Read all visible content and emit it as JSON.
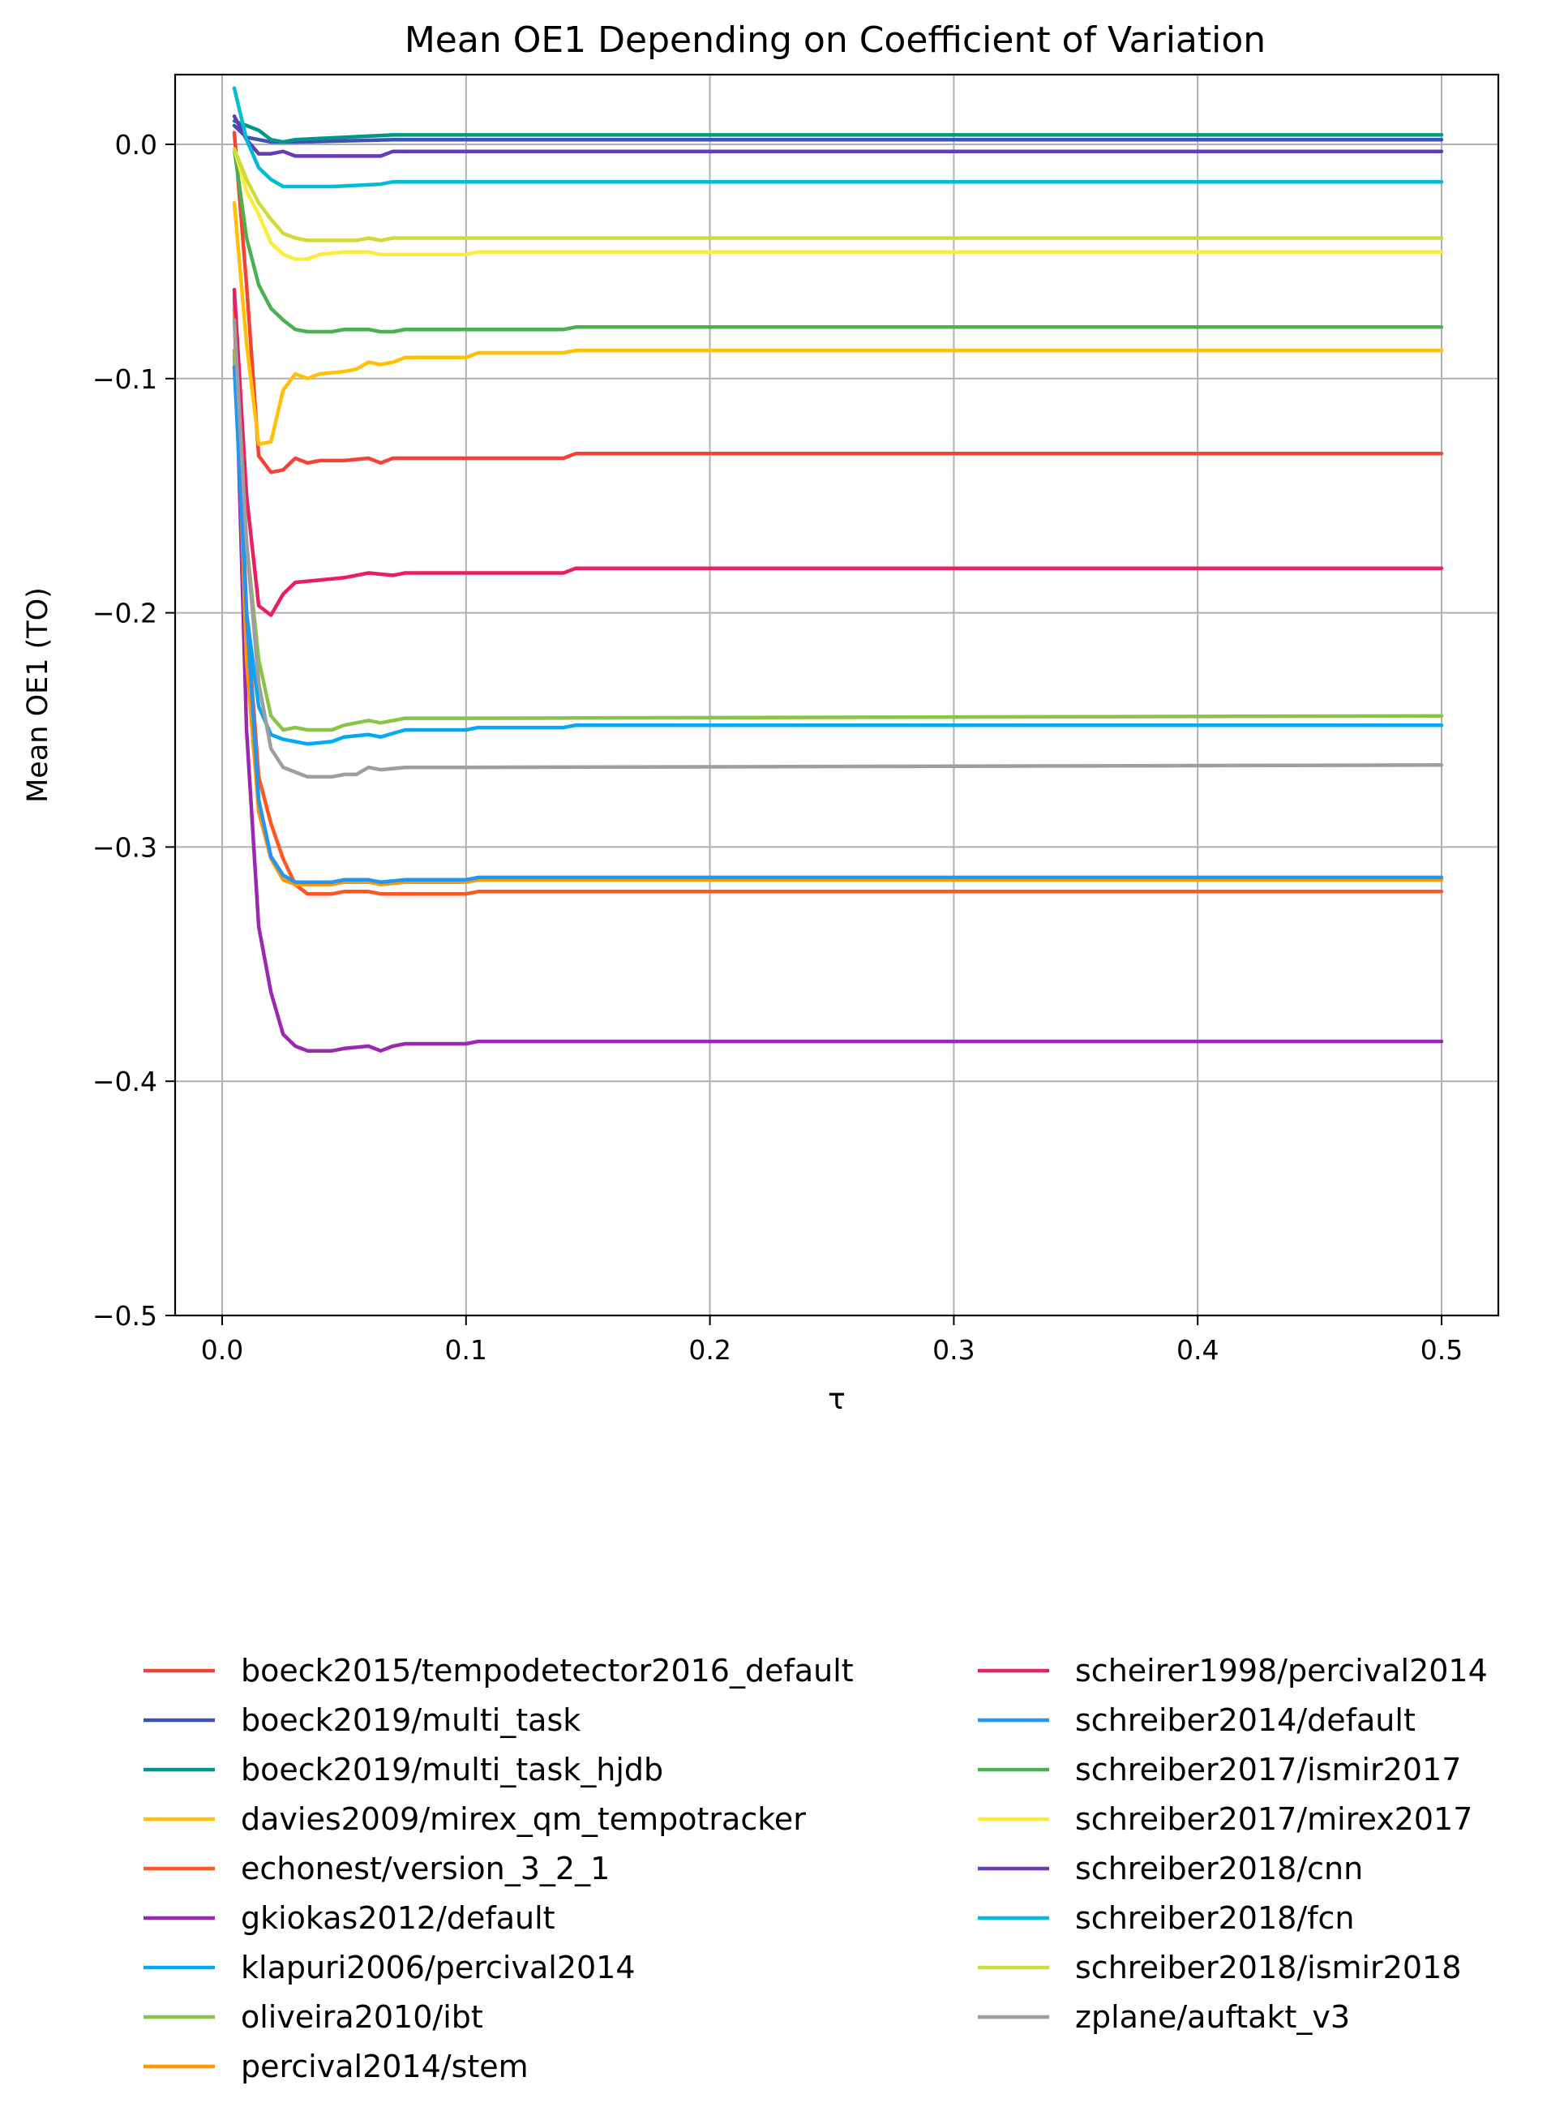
{
  "chart_data": {
    "type": "line",
    "title": "Mean OE1 Depending on Coefficient of Variation",
    "xlabel": "τ",
    "ylabel": "Mean OE1 (TO)",
    "xlim": [
      -0.02,
      0.525
    ],
    "ylim": [
      -0.5,
      0.03
    ],
    "xticks": [
      0.0,
      0.1,
      0.2,
      0.3,
      0.4,
      0.5
    ],
    "xtick_labels": [
      "0.0",
      "0.1",
      "0.2",
      "0.3",
      "0.4",
      "0.5"
    ],
    "yticks": [
      0.0,
      -0.1,
      -0.2,
      -0.3,
      -0.4,
      -0.5
    ],
    "ytick_labels": [
      "0.0",
      "−0.1",
      "−0.2",
      "−0.3",
      "−0.4",
      "−0.5"
    ],
    "grid": true,
    "legend_placement": "below plot, two columns",
    "series": [
      {
        "name": "boeck2015/tempodetector2016_default",
        "color": "#f44336",
        "points": [
          [
            0.005,
            0.005
          ],
          [
            0.01,
            -0.06
          ],
          [
            0.015,
            -0.133
          ],
          [
            0.02,
            -0.14
          ],
          [
            0.025,
            -0.139
          ],
          [
            0.03,
            -0.134
          ],
          [
            0.035,
            -0.136
          ],
          [
            0.04,
            -0.135
          ],
          [
            0.05,
            -0.135
          ],
          [
            0.06,
            -0.134
          ],
          [
            0.065,
            -0.136
          ],
          [
            0.07,
            -0.134
          ],
          [
            0.1,
            -0.134
          ],
          [
            0.14,
            -0.134
          ],
          [
            0.145,
            -0.132
          ],
          [
            0.5,
            -0.132
          ]
        ]
      },
      {
        "name": "boeck2019/multi_task",
        "color": "#3f51b5",
        "points": [
          [
            0.005,
            0.008
          ],
          [
            0.01,
            0.003
          ],
          [
            0.02,
            0.001
          ],
          [
            0.03,
            0.001
          ],
          [
            0.07,
            0.002
          ],
          [
            0.5,
            0.002
          ]
        ]
      },
      {
        "name": "boeck2019/multi_task_hjdb",
        "color": "#009688",
        "points": [
          [
            0.005,
            0.01
          ],
          [
            0.01,
            0.008
          ],
          [
            0.015,
            0.006
          ],
          [
            0.02,
            0.002
          ],
          [
            0.025,
            0.001
          ],
          [
            0.03,
            0.002
          ],
          [
            0.07,
            0.004
          ],
          [
            0.5,
            0.004
          ]
        ]
      },
      {
        "name": "davies2009/mirex_qm_tempotracker",
        "color": "#ffc107",
        "points": [
          [
            0.005,
            -0.025
          ],
          [
            0.01,
            -0.085
          ],
          [
            0.015,
            -0.128
          ],
          [
            0.02,
            -0.127
          ],
          [
            0.025,
            -0.105
          ],
          [
            0.03,
            -0.098
          ],
          [
            0.035,
            -0.1
          ],
          [
            0.04,
            -0.098
          ],
          [
            0.05,
            -0.097
          ],
          [
            0.055,
            -0.096
          ],
          [
            0.06,
            -0.093
          ],
          [
            0.065,
            -0.094
          ],
          [
            0.07,
            -0.093
          ],
          [
            0.075,
            -0.091
          ],
          [
            0.1,
            -0.091
          ],
          [
            0.105,
            -0.089
          ],
          [
            0.14,
            -0.089
          ],
          [
            0.145,
            -0.088
          ],
          [
            0.5,
            -0.088
          ]
        ]
      },
      {
        "name": "echonest/version_3_2_1",
        "color": "#ff5722",
        "points": [
          [
            0.005,
            -0.065
          ],
          [
            0.01,
            -0.2
          ],
          [
            0.015,
            -0.27
          ],
          [
            0.02,
            -0.29
          ],
          [
            0.025,
            -0.305
          ],
          [
            0.03,
            -0.316
          ],
          [
            0.035,
            -0.32
          ],
          [
            0.045,
            -0.32
          ],
          [
            0.05,
            -0.319
          ],
          [
            0.06,
            -0.319
          ],
          [
            0.065,
            -0.32
          ],
          [
            0.1,
            -0.32
          ],
          [
            0.105,
            -0.319
          ],
          [
            0.5,
            -0.319
          ]
        ]
      },
      {
        "name": "gkiokas2012/default",
        "color": "#9c27b0",
        "points": [
          [
            0.005,
            -0.07
          ],
          [
            0.01,
            -0.25
          ],
          [
            0.015,
            -0.334
          ],
          [
            0.02,
            -0.362
          ],
          [
            0.025,
            -0.38
          ],
          [
            0.03,
            -0.385
          ],
          [
            0.035,
            -0.387
          ],
          [
            0.045,
            -0.387
          ],
          [
            0.05,
            -0.386
          ],
          [
            0.06,
            -0.385
          ],
          [
            0.065,
            -0.387
          ],
          [
            0.07,
            -0.385
          ],
          [
            0.075,
            -0.384
          ],
          [
            0.1,
            -0.384
          ],
          [
            0.105,
            -0.383
          ],
          [
            0.5,
            -0.383
          ]
        ]
      },
      {
        "name": "klapuri2006/percival2014",
        "color": "#03a9f4",
        "points": [
          [
            0.005,
            -0.09
          ],
          [
            0.01,
            -0.2
          ],
          [
            0.015,
            -0.24
          ],
          [
            0.02,
            -0.252
          ],
          [
            0.025,
            -0.254
          ],
          [
            0.035,
            -0.256
          ],
          [
            0.045,
            -0.255
          ],
          [
            0.05,
            -0.253
          ],
          [
            0.06,
            -0.252
          ],
          [
            0.065,
            -0.253
          ],
          [
            0.075,
            -0.25
          ],
          [
            0.1,
            -0.25
          ],
          [
            0.105,
            -0.249
          ],
          [
            0.14,
            -0.249
          ],
          [
            0.145,
            -0.248
          ],
          [
            0.5,
            -0.248
          ]
        ]
      },
      {
        "name": "oliveira2010/ibt",
        "color": "#8bc34a",
        "points": [
          [
            0.005,
            -0.088
          ],
          [
            0.01,
            -0.17
          ],
          [
            0.015,
            -0.22
          ],
          [
            0.02,
            -0.244
          ],
          [
            0.025,
            -0.25
          ],
          [
            0.03,
            -0.249
          ],
          [
            0.035,
            -0.25
          ],
          [
            0.045,
            -0.25
          ],
          [
            0.05,
            -0.248
          ],
          [
            0.06,
            -0.246
          ],
          [
            0.065,
            -0.247
          ],
          [
            0.075,
            -0.245
          ],
          [
            0.1,
            -0.245
          ],
          [
            0.5,
            -0.244
          ]
        ]
      },
      {
        "name": "percival2014/stem",
        "color": "#ff9800",
        "points": [
          [
            0.005,
            -0.07
          ],
          [
            0.01,
            -0.22
          ],
          [
            0.015,
            -0.285
          ],
          [
            0.02,
            -0.305
          ],
          [
            0.025,
            -0.314
          ],
          [
            0.03,
            -0.316
          ],
          [
            0.045,
            -0.316
          ],
          [
            0.05,
            -0.315
          ],
          [
            0.06,
            -0.315
          ],
          [
            0.065,
            -0.316
          ],
          [
            0.075,
            -0.315
          ],
          [
            0.1,
            -0.315
          ],
          [
            0.105,
            -0.314
          ],
          [
            0.5,
            -0.314
          ]
        ]
      },
      {
        "name": "scheirer1998/percival2014",
        "color": "#e91e63",
        "points": [
          [
            0.005,
            -0.062
          ],
          [
            0.01,
            -0.15
          ],
          [
            0.015,
            -0.197
          ],
          [
            0.02,
            -0.201
          ],
          [
            0.025,
            -0.192
          ],
          [
            0.03,
            -0.187
          ],
          [
            0.04,
            -0.186
          ],
          [
            0.05,
            -0.185
          ],
          [
            0.06,
            -0.183
          ],
          [
            0.07,
            -0.184
          ],
          [
            0.075,
            -0.183
          ],
          [
            0.14,
            -0.183
          ],
          [
            0.145,
            -0.181
          ],
          [
            0.5,
            -0.181
          ]
        ]
      },
      {
        "name": "schreiber2014/default",
        "color": "#2196f3",
        "points": [
          [
            0.005,
            -0.095
          ],
          [
            0.01,
            -0.2
          ],
          [
            0.015,
            -0.28
          ],
          [
            0.02,
            -0.304
          ],
          [
            0.025,
            -0.312
          ],
          [
            0.03,
            -0.315
          ],
          [
            0.035,
            -0.315
          ],
          [
            0.045,
            -0.315
          ],
          [
            0.05,
            -0.314
          ],
          [
            0.06,
            -0.314
          ],
          [
            0.065,
            -0.315
          ],
          [
            0.075,
            -0.314
          ],
          [
            0.1,
            -0.314
          ],
          [
            0.105,
            -0.313
          ],
          [
            0.5,
            -0.313
          ]
        ]
      },
      {
        "name": "schreiber2017/ismir2017",
        "color": "#4caf50",
        "points": [
          [
            0.005,
            -0.002
          ],
          [
            0.01,
            -0.04
          ],
          [
            0.015,
            -0.06
          ],
          [
            0.02,
            -0.07
          ],
          [
            0.025,
            -0.075
          ],
          [
            0.03,
            -0.079
          ],
          [
            0.035,
            -0.08
          ],
          [
            0.045,
            -0.08
          ],
          [
            0.05,
            -0.079
          ],
          [
            0.06,
            -0.079
          ],
          [
            0.065,
            -0.08
          ],
          [
            0.07,
            -0.08
          ],
          [
            0.075,
            -0.079
          ],
          [
            0.14,
            -0.079
          ],
          [
            0.145,
            -0.078
          ],
          [
            0.5,
            -0.078
          ]
        ]
      },
      {
        "name": "schreiber2017/mirex2017",
        "color": "#ffeb3b",
        "points": [
          [
            0.005,
            -0.002
          ],
          [
            0.01,
            -0.02
          ],
          [
            0.015,
            -0.03
          ],
          [
            0.02,
            -0.042
          ],
          [
            0.025,
            -0.047
          ],
          [
            0.03,
            -0.049
          ],
          [
            0.035,
            -0.049
          ],
          [
            0.04,
            -0.047
          ],
          [
            0.05,
            -0.046
          ],
          [
            0.06,
            -0.046
          ],
          [
            0.065,
            -0.047
          ],
          [
            0.1,
            -0.047
          ],
          [
            0.105,
            -0.046
          ],
          [
            0.5,
            -0.046
          ]
        ]
      },
      {
        "name": "schreiber2018/cnn",
        "color": "#673ab7",
        "points": [
          [
            0.005,
            0.012
          ],
          [
            0.01,
            0.002
          ],
          [
            0.015,
            -0.004
          ],
          [
            0.02,
            -0.004
          ],
          [
            0.025,
            -0.003
          ],
          [
            0.03,
            -0.005
          ],
          [
            0.045,
            -0.005
          ],
          [
            0.05,
            -0.005
          ],
          [
            0.065,
            -0.005
          ],
          [
            0.07,
            -0.003
          ],
          [
            0.5,
            -0.003
          ]
        ]
      },
      {
        "name": "schreiber2018/fcn",
        "color": "#00bcd4",
        "points": [
          [
            0.005,
            0.024
          ],
          [
            0.01,
            0.002
          ],
          [
            0.015,
            -0.01
          ],
          [
            0.02,
            -0.015
          ],
          [
            0.025,
            -0.018
          ],
          [
            0.03,
            -0.018
          ],
          [
            0.045,
            -0.018
          ],
          [
            0.065,
            -0.017
          ],
          [
            0.07,
            -0.016
          ],
          [
            0.5,
            -0.016
          ]
        ]
      },
      {
        "name": "schreiber2018/ismir2018",
        "color": "#cddc39",
        "points": [
          [
            0.005,
            -0.002
          ],
          [
            0.01,
            -0.015
          ],
          [
            0.015,
            -0.025
          ],
          [
            0.02,
            -0.032
          ],
          [
            0.025,
            -0.038
          ],
          [
            0.03,
            -0.04
          ],
          [
            0.035,
            -0.041
          ],
          [
            0.045,
            -0.041
          ],
          [
            0.055,
            -0.041
          ],
          [
            0.06,
            -0.04
          ],
          [
            0.065,
            -0.041
          ],
          [
            0.07,
            -0.04
          ],
          [
            0.5,
            -0.04
          ]
        ]
      },
      {
        "name": "zplane/auftakt_v3",
        "color": "#9e9e9e",
        "points": [
          [
            0.005,
            -0.075
          ],
          [
            0.01,
            -0.17
          ],
          [
            0.015,
            -0.23
          ],
          [
            0.02,
            -0.258
          ],
          [
            0.025,
            -0.266
          ],
          [
            0.03,
            -0.268
          ],
          [
            0.035,
            -0.27
          ],
          [
            0.045,
            -0.27
          ],
          [
            0.05,
            -0.269
          ],
          [
            0.055,
            -0.269
          ],
          [
            0.06,
            -0.266
          ],
          [
            0.065,
            -0.267
          ],
          [
            0.075,
            -0.266
          ],
          [
            0.1,
            -0.266
          ],
          [
            0.5,
            -0.265
          ]
        ]
      }
    ]
  }
}
